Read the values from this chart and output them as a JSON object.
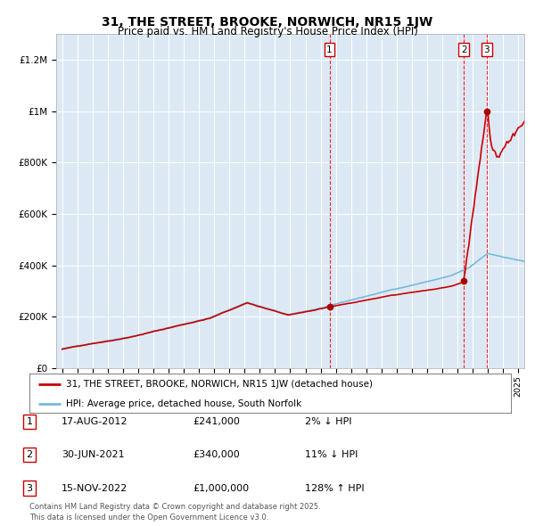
{
  "title": "31, THE STREET, BROOKE, NORWICH, NR15 1JW",
  "subtitle": "Price paid vs. HM Land Registry's House Price Index (HPI)",
  "background_color": "#dce9f5",
  "plot_bg_color": "#dce9f5",
  "red_line_label": "31, THE STREET, BROOKE, NORWICH, NR15 1JW (detached house)",
  "blue_line_label": "HPI: Average price, detached house, South Norfolk",
  "footer": "Contains HM Land Registry data © Crown copyright and database right 2025.\nThis data is licensed under the Open Government Licence v3.0.",
  "annotations": [
    {
      "num": 1,
      "date": "17-AUG-2012",
      "price": "£241,000",
      "hpi": "2% ↓ HPI"
    },
    {
      "num": 2,
      "date": "30-JUN-2021",
      "price": "£340,000",
      "hpi": "11% ↓ HPI"
    },
    {
      "num": 3,
      "date": "15-NOV-2022",
      "price": "£1,000,000",
      "hpi": "128% ↑ HPI"
    }
  ],
  "ylim": [
    0,
    1300000
  ],
  "yticks": [
    0,
    200000,
    400000,
    600000,
    800000,
    1000000,
    1200000
  ],
  "ytick_labels": [
    "£0",
    "£200K",
    "£400K",
    "£600K",
    "£800K",
    "£1M",
    "£1.2M"
  ],
  "year_start": 1995,
  "year_end": 2025
}
